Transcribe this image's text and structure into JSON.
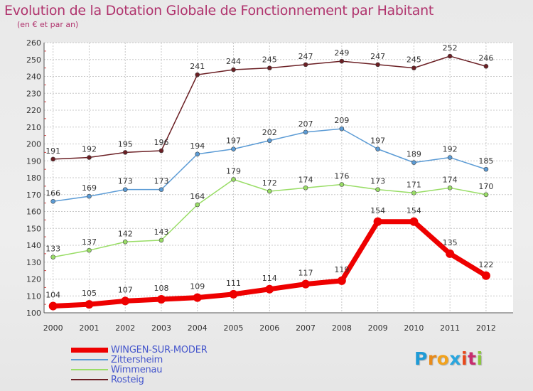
{
  "header": {
    "title": "Evolution de la Dotation Globale de Fonctionnement par Habitant",
    "subtitle": "(en € et par an)"
  },
  "logo": {
    "letters": [
      "P",
      "r",
      "o",
      "x",
      "i",
      "t",
      "i"
    ],
    "colors": [
      "#1f9bd6",
      "#e88a1a",
      "#f2a21c",
      "#2aa6de",
      "#e8481a",
      "#c72d6e",
      "#8cc63f"
    ]
  },
  "chart_data": {
    "type": "line",
    "title": "Evolution de la Dotation Globale de Fonctionnement par Habitant",
    "subtitle": "(en € et par an)",
    "xlabel": "",
    "ylabel": "",
    "x": [
      2000,
      2001,
      2002,
      2003,
      2004,
      2005,
      2006,
      2007,
      2008,
      2009,
      2010,
      2011,
      2012
    ],
    "ylim": [
      100,
      260
    ],
    "yticks": [
      100,
      110,
      120,
      130,
      140,
      150,
      160,
      170,
      180,
      190,
      200,
      210,
      220,
      230,
      240,
      250,
      260
    ],
    "grid": true,
    "legend_position": "bottom-left",
    "series": [
      {
        "name": "WINGEN-SUR-MODER",
        "color": "#ee0000",
        "values": [
          104,
          105,
          107,
          108,
          109,
          111,
          114,
          117,
          119,
          154,
          154,
          135,
          122
        ]
      },
      {
        "name": "Zittersheim",
        "color": "#5b9bd5",
        "values": [
          166,
          169,
          173,
          173,
          194,
          197,
          202,
          207,
          209,
          197,
          189,
          192,
          185
        ]
      },
      {
        "name": "Wimmenau",
        "color": "#99dd66",
        "values": [
          133,
          137,
          142,
          143,
          164,
          179,
          172,
          174,
          176,
          173,
          171,
          174,
          170
        ]
      },
      {
        "name": "Rosteig",
        "color": "#6b1f24",
        "values": [
          191,
          192,
          195,
          196,
          241,
          244,
          245,
          247,
          249,
          247,
          245,
          252,
          246
        ]
      }
    ]
  }
}
